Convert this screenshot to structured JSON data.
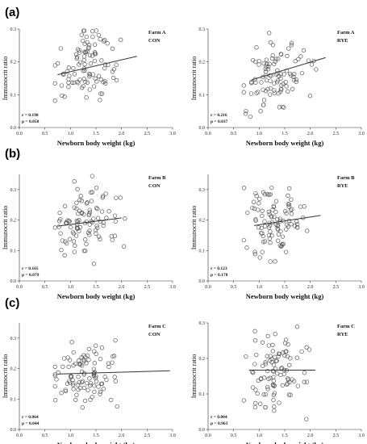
{
  "chart_data": [
    {
      "id": "a-left",
      "group": "(a)",
      "type": "scatter",
      "farm": "Farm A",
      "treatment": "CON",
      "r": "r = 0.198",
      "p": "p = 0.050",
      "xlabel": "Newborn body weight (kg)",
      "ylabel": "Immunocrit ratio",
      "xlim": [
        0,
        3
      ],
      "ylim": [
        0,
        0.3
      ],
      "xticks": [
        "0.0",
        "0.5",
        "1.0",
        "1.5",
        "2.0",
        "2.5",
        "3.0"
      ],
      "yticks": [
        "0.0",
        "0.1",
        "0.2",
        "0.3"
      ],
      "fit": {
        "x1": 0.75,
        "y1": 0.161,
        "x2": 2.3,
        "y2": 0.217
      },
      "seed": 11
    },
    {
      "id": "a-right",
      "group": "(a)",
      "type": "scatter",
      "farm": "Farm A",
      "treatment": "RYE",
      "r": "r = 0.216",
      "p": "p = 0.037",
      "xlabel": "Newborn body weight (kg)",
      "ylabel": "Immunocrit ratio",
      "xlim": [
        0,
        3
      ],
      "ylim": [
        0,
        0.3
      ],
      "xticks": [
        "0.0",
        "0.5",
        "1.0",
        "1.5",
        "2.0",
        "2.5",
        "3.0"
      ],
      "yticks": [
        "0.0",
        "0.1",
        "0.2",
        "0.3"
      ],
      "fit": {
        "x1": 0.85,
        "y1": 0.145,
        "x2": 2.3,
        "y2": 0.213
      },
      "seed": 23
    },
    {
      "id": "b-left",
      "group": "(b)",
      "type": "scatter",
      "farm": "Farm B",
      "treatment": "CON",
      "r": "r = 0.165",
      "p": "p = 0.079",
      "xlabel": "Newborn body weight (kg)",
      "ylabel": "Immunocrit ratio",
      "xlim": [
        0,
        3
      ],
      "ylim": [
        0,
        0.35
      ],
      "xticks": [
        "0.0",
        "0.5",
        "1.0",
        "1.5",
        "2.0",
        "2.5",
        "3.0"
      ],
      "yticks": [
        "0.0",
        "0.1",
        "0.2",
        "0.3"
      ],
      "fit": {
        "x1": 0.75,
        "y1": 0.18,
        "x2": 2.0,
        "y2": 0.207
      },
      "seed": 37
    },
    {
      "id": "b-right",
      "group": "(b)",
      "type": "scatter",
      "farm": "Farm B",
      "treatment": "RYE",
      "r": "r = 0.123",
      "p": "p = 0.178",
      "xlabel": "Newborn body weight (kg)",
      "ylabel": "Immunocrit ratio",
      "xlim": [
        0,
        3
      ],
      "ylim": [
        0,
        0.35
      ],
      "xticks": [
        "0.0",
        "0.5",
        "1.0",
        "1.5",
        "2.0",
        "2.5",
        "3.0"
      ],
      "yticks": [
        "0.0",
        "0.1",
        "0.2",
        "0.3"
      ],
      "fit": {
        "x1": 0.9,
        "y1": 0.182,
        "x2": 2.2,
        "y2": 0.215
      },
      "seed": 41
    },
    {
      "id": "c-left",
      "group": "(c)",
      "type": "scatter",
      "farm": "Farm C",
      "treatment": "CON",
      "r": "r = 0.064",
      "p": "p = 0.044",
      "xlabel": "Newborn body weight (kg)",
      "ylabel": "Immunocrit ratio",
      "xlim": [
        0,
        3
      ],
      "ylim": [
        0,
        0.35
      ],
      "xticks": [
        "0.0",
        "0.5",
        "1.0",
        "1.5",
        "2.0",
        "2.5",
        "3.0"
      ],
      "yticks": [
        "0.0",
        "0.1",
        "0.2",
        "0.3"
      ],
      "fit": {
        "x1": 0.75,
        "y1": 0.182,
        "x2": 2.95,
        "y2": 0.193
      },
      "seed": 53
    },
    {
      "id": "c-right",
      "group": "(c)",
      "type": "scatter",
      "farm": "Farm C",
      "treatment": "RYE",
      "r": "r = 0.004",
      "p": "p = 0.963",
      "xlabel": "Newborn body weight (kg)",
      "ylabel": "Immunocrit ratio",
      "xlim": [
        0,
        3
      ],
      "ylim": [
        0,
        0.3
      ],
      "xticks": [
        "0.0",
        "0.5",
        "1.0",
        "1.5",
        "2.0",
        "2.5",
        "3.0"
      ],
      "yticks": [
        "0.0",
        "0.1",
        "0.2",
        "0.3"
      ],
      "fit": {
        "x1": 0.8,
        "y1": 0.167,
        "x2": 2.1,
        "y2": 0.167
      },
      "seed": 67
    }
  ]
}
